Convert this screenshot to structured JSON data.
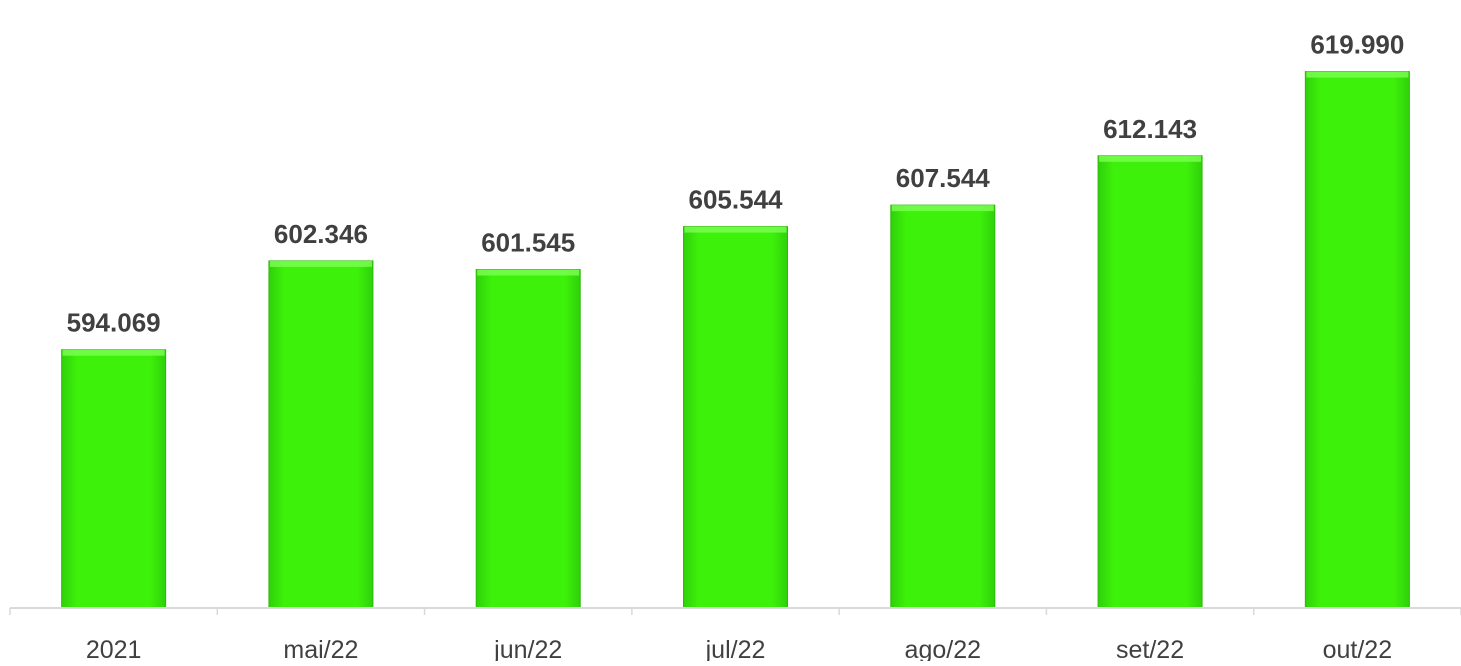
{
  "chart_data": {
    "type": "bar",
    "title": "",
    "xlabel": "",
    "ylabel": "",
    "categories": [
      "2021",
      "mai/22",
      "jun/22",
      "jul/22",
      "ago/22",
      "set/22",
      "out/22"
    ],
    "values": [
      594069,
      602346,
      601545,
      605544,
      607544,
      612143,
      619990
    ],
    "value_labels": [
      "594.069",
      "602.346",
      "601.545",
      "605.544",
      "607.544",
      "612.143",
      "619.990"
    ],
    "ylim": [
      570000,
      622000
    ],
    "grid": false,
    "legend": "none",
    "colors": {
      "bar": "#3ef10a",
      "bar_edge": "#2fb80a",
      "bar_highlight": "#7cff52",
      "axis": "#d9d9d9",
      "text": "#404040"
    }
  }
}
